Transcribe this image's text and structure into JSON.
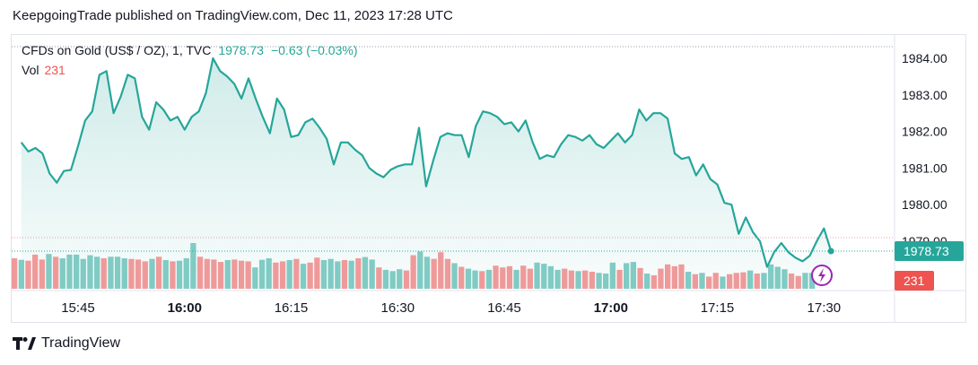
{
  "header": {
    "text": "KeepgoingTrade published on TradingView.com, Dec 11, 2023 17:28 UTC"
  },
  "legend": {
    "symbol": "CFDs on Gold (US$ / OZ), 1, TVC",
    "last": "1978.73",
    "change": "−0.63 (−0.03%)",
    "vol_label": "Vol",
    "vol_value": "231"
  },
  "badges": {
    "price": "1978.73",
    "volume": "231"
  },
  "footer": {
    "brand": "TradingView"
  },
  "colors": {
    "line": "#26a69a",
    "up_volume": "#80cbc4",
    "down_volume": "#ef9a9a",
    "price_badge": "#26a69a",
    "volume_badge": "#ef5350",
    "lightning": "#9c27b0"
  },
  "chart_data": {
    "type": "area",
    "symbol": "CFDs on Gold (US$ / OZ)",
    "interval": "1",
    "x_ticks": [
      "15:45",
      "16:00",
      "16:15",
      "16:30",
      "16:45",
      "17:00",
      "17:15",
      "17:30"
    ],
    "x_ticks_bold": [
      "16:00",
      "17:00"
    ],
    "y_ticks": [
      "1979.00",
      "1980.00",
      "1981.00",
      "1982.00",
      "1983.00",
      "1984.00"
    ],
    "ylim": [
      1978.2,
      1984.4
    ],
    "grid": false,
    "price_series": [
      {
        "t": "15:37",
        "v": 1981.7
      },
      {
        "t": "15:38",
        "v": 1981.45
      },
      {
        "t": "15:39",
        "v": 1981.55
      },
      {
        "t": "15:40",
        "v": 1981.4
      },
      {
        "t": "15:41",
        "v": 1980.85
      },
      {
        "t": "15:42",
        "v": 1980.6
      },
      {
        "t": "15:43",
        "v": 1980.92
      },
      {
        "t": "15:44",
        "v": 1980.95
      },
      {
        "t": "15:45",
        "v": 1981.6
      },
      {
        "t": "15:46",
        "v": 1982.3
      },
      {
        "t": "15:47",
        "v": 1982.55
      },
      {
        "t": "15:48",
        "v": 1983.55
      },
      {
        "t": "15:49",
        "v": 1983.65
      },
      {
        "t": "15:50",
        "v": 1982.5
      },
      {
        "t": "15:51",
        "v": 1982.95
      },
      {
        "t": "15:52",
        "v": 1983.55
      },
      {
        "t": "15:53",
        "v": 1983.45
      },
      {
        "t": "15:54",
        "v": 1982.4
      },
      {
        "t": "15:55",
        "v": 1982.05
      },
      {
        "t": "15:56",
        "v": 1982.8
      },
      {
        "t": "15:57",
        "v": 1982.6
      },
      {
        "t": "15:58",
        "v": 1982.3
      },
      {
        "t": "15:59",
        "v": 1982.4
      },
      {
        "t": "16:00",
        "v": 1982.05
      },
      {
        "t": "16:01",
        "v": 1982.4
      },
      {
        "t": "16:02",
        "v": 1982.55
      },
      {
        "t": "16:03",
        "v": 1983.05
      },
      {
        "t": "16:04",
        "v": 1984.0
      },
      {
        "t": "16:05",
        "v": 1983.65
      },
      {
        "t": "16:06",
        "v": 1983.5
      },
      {
        "t": "16:07",
        "v": 1983.3
      },
      {
        "t": "16:08",
        "v": 1982.9
      },
      {
        "t": "16:09",
        "v": 1983.45
      },
      {
        "t": "16:10",
        "v": 1982.9
      },
      {
        "t": "16:11",
        "v": 1982.4
      },
      {
        "t": "16:12",
        "v": 1981.95
      },
      {
        "t": "16:13",
        "v": 1982.9
      },
      {
        "t": "16:14",
        "v": 1982.6
      },
      {
        "t": "16:15",
        "v": 1981.85
      },
      {
        "t": "16:16",
        "v": 1981.9
      },
      {
        "t": "16:17",
        "v": 1982.25
      },
      {
        "t": "16:18",
        "v": 1982.35
      },
      {
        "t": "16:19",
        "v": 1982.1
      },
      {
        "t": "16:20",
        "v": 1981.8
      },
      {
        "t": "16:21",
        "v": 1981.1
      },
      {
        "t": "16:22",
        "v": 1981.7
      },
      {
        "t": "16:23",
        "v": 1981.7
      },
      {
        "t": "16:24",
        "v": 1981.5
      },
      {
        "t": "16:25",
        "v": 1981.35
      },
      {
        "t": "16:26",
        "v": 1981.0
      },
      {
        "t": "16:27",
        "v": 1980.85
      },
      {
        "t": "16:28",
        "v": 1980.75
      },
      {
        "t": "16:29",
        "v": 1980.95
      },
      {
        "t": "16:30",
        "v": 1981.05
      },
      {
        "t": "16:31",
        "v": 1981.1
      },
      {
        "t": "16:32",
        "v": 1981.1
      },
      {
        "t": "16:33",
        "v": 1982.1
      },
      {
        "t": "16:34",
        "v": 1980.5
      },
      {
        "t": "16:35",
        "v": 1981.2
      },
      {
        "t": "16:36",
        "v": 1981.85
      },
      {
        "t": "16:37",
        "v": 1981.95
      },
      {
        "t": "16:38",
        "v": 1981.9
      },
      {
        "t": "16:39",
        "v": 1981.9
      },
      {
        "t": "16:40",
        "v": 1981.3
      },
      {
        "t": "16:41",
        "v": 1982.15
      },
      {
        "t": "16:42",
        "v": 1982.55
      },
      {
        "t": "16:43",
        "v": 1982.5
      },
      {
        "t": "16:44",
        "v": 1982.4
      },
      {
        "t": "16:45",
        "v": 1982.2
      },
      {
        "t": "16:46",
        "v": 1982.25
      },
      {
        "t": "16:47",
        "v": 1982.0
      },
      {
        "t": "16:48",
        "v": 1982.3
      },
      {
        "t": "16:49",
        "v": 1981.7
      },
      {
        "t": "16:50",
        "v": 1981.25
      },
      {
        "t": "16:51",
        "v": 1981.35
      },
      {
        "t": "16:52",
        "v": 1981.3
      },
      {
        "t": "16:53",
        "v": 1981.65
      },
      {
        "t": "16:54",
        "v": 1981.9
      },
      {
        "t": "16:55",
        "v": 1981.85
      },
      {
        "t": "16:56",
        "v": 1981.75
      },
      {
        "t": "16:57",
        "v": 1981.9
      },
      {
        "t": "16:58",
        "v": 1981.65
      },
      {
        "t": "16:59",
        "v": 1981.55
      },
      {
        "t": "17:00",
        "v": 1981.75
      },
      {
        "t": "17:01",
        "v": 1981.95
      },
      {
        "t": "17:02",
        "v": 1981.7
      },
      {
        "t": "17:03",
        "v": 1981.9
      },
      {
        "t": "17:04",
        "v": 1982.6
      },
      {
        "t": "17:05",
        "v": 1982.3
      },
      {
        "t": "17:06",
        "v": 1982.5
      },
      {
        "t": "17:07",
        "v": 1982.5
      },
      {
        "t": "17:08",
        "v": 1982.35
      },
      {
        "t": "17:09",
        "v": 1981.4
      },
      {
        "t": "17:10",
        "v": 1981.25
      },
      {
        "t": "17:11",
        "v": 1981.3
      },
      {
        "t": "17:12",
        "v": 1980.8
      },
      {
        "t": "17:13",
        "v": 1981.1
      },
      {
        "t": "17:14",
        "v": 1980.7
      },
      {
        "t": "17:15",
        "v": 1980.55
      },
      {
        "t": "17:16",
        "v": 1980.05
      },
      {
        "t": "17:17",
        "v": 1980.0
      },
      {
        "t": "17:18",
        "v": 1979.2
      },
      {
        "t": "17:19",
        "v": 1979.65
      },
      {
        "t": "17:20",
        "v": 1979.25
      },
      {
        "t": "17:21",
        "v": 1979.0
      },
      {
        "t": "17:22",
        "v": 1978.3
      },
      {
        "t": "17:23",
        "v": 1978.7
      },
      {
        "t": "17:24",
        "v": 1978.95
      },
      {
        "t": "17:25",
        "v": 1978.7
      },
      {
        "t": "17:26",
        "v": 1978.55
      },
      {
        "t": "17:27",
        "v": 1978.45
      },
      {
        "t": "17:28",
        "v": 1978.6
      },
      {
        "t": "17:29",
        "v": 1979.0
      },
      {
        "t": "17:30",
        "v": 1979.35
      },
      {
        "t": "17:31",
        "v": 1978.73
      }
    ],
    "volume_series": [
      {
        "v": 1.0,
        "d": "down"
      },
      {
        "v": 0.95,
        "d": "up"
      },
      {
        "v": 0.92,
        "d": "down"
      },
      {
        "v": 1.12,
        "d": "down"
      },
      {
        "v": 0.96,
        "d": "down"
      },
      {
        "v": 1.14,
        "d": "up"
      },
      {
        "v": 1.05,
        "d": "down"
      },
      {
        "v": 1.0,
        "d": "up"
      },
      {
        "v": 1.12,
        "d": "up"
      },
      {
        "v": 1.12,
        "d": "up"
      },
      {
        "v": 0.98,
        "d": "up"
      },
      {
        "v": 1.1,
        "d": "up"
      },
      {
        "v": 1.05,
        "d": "up"
      },
      {
        "v": 1.0,
        "d": "down"
      },
      {
        "v": 1.05,
        "d": "up"
      },
      {
        "v": 1.05,
        "d": "up"
      },
      {
        "v": 1.0,
        "d": "up"
      },
      {
        "v": 0.98,
        "d": "down"
      },
      {
        "v": 0.96,
        "d": "down"
      },
      {
        "v": 0.9,
        "d": "down"
      },
      {
        "v": 0.98,
        "d": "up"
      },
      {
        "v": 1.05,
        "d": "down"
      },
      {
        "v": 0.94,
        "d": "up"
      },
      {
        "v": 0.9,
        "d": "down"
      },
      {
        "v": 0.92,
        "d": "up"
      },
      {
        "v": 1.0,
        "d": "up"
      },
      {
        "v": 1.5,
        "d": "up"
      },
      {
        "v": 1.05,
        "d": "down"
      },
      {
        "v": 0.98,
        "d": "down"
      },
      {
        "v": 0.96,
        "d": "down"
      },
      {
        "v": 0.88,
        "d": "down"
      },
      {
        "v": 0.94,
        "d": "up"
      },
      {
        "v": 0.96,
        "d": "down"
      },
      {
        "v": 0.92,
        "d": "down"
      },
      {
        "v": 0.9,
        "d": "down"
      },
      {
        "v": 0.7,
        "d": "up"
      },
      {
        "v": 0.95,
        "d": "up"
      },
      {
        "v": 1.0,
        "d": "up"
      },
      {
        "v": 0.86,
        "d": "down"
      },
      {
        "v": 0.9,
        "d": "down"
      },
      {
        "v": 0.94,
        "d": "up"
      },
      {
        "v": 0.98,
        "d": "down"
      },
      {
        "v": 0.82,
        "d": "up"
      },
      {
        "v": 0.86,
        "d": "down"
      },
      {
        "v": 1.02,
        "d": "down"
      },
      {
        "v": 0.94,
        "d": "up"
      },
      {
        "v": 0.98,
        "d": "up"
      },
      {
        "v": 0.9,
        "d": "up"
      },
      {
        "v": 0.94,
        "d": "down"
      },
      {
        "v": 0.92,
        "d": "up"
      },
      {
        "v": 1.0,
        "d": "down"
      },
      {
        "v": 1.04,
        "d": "up"
      },
      {
        "v": 0.96,
        "d": "up"
      },
      {
        "v": 0.7,
        "d": "down"
      },
      {
        "v": 0.62,
        "d": "up"
      },
      {
        "v": 0.58,
        "d": "up"
      },
      {
        "v": 0.64,
        "d": "up"
      },
      {
        "v": 0.6,
        "d": "down"
      },
      {
        "v": 1.1,
        "d": "down"
      },
      {
        "v": 1.22,
        "d": "up"
      },
      {
        "v": 1.05,
        "d": "up"
      },
      {
        "v": 0.98,
        "d": "down"
      },
      {
        "v": 1.2,
        "d": "down"
      },
      {
        "v": 0.98,
        "d": "down"
      },
      {
        "v": 0.84,
        "d": "up"
      },
      {
        "v": 0.72,
        "d": "down"
      },
      {
        "v": 0.66,
        "d": "up"
      },
      {
        "v": 0.6,
        "d": "up"
      },
      {
        "v": 0.58,
        "d": "down"
      },
      {
        "v": 0.62,
        "d": "up"
      },
      {
        "v": 0.76,
        "d": "down"
      },
      {
        "v": 0.7,
        "d": "down"
      },
      {
        "v": 0.74,
        "d": "down"
      },
      {
        "v": 0.62,
        "d": "up"
      },
      {
        "v": 0.76,
        "d": "down"
      },
      {
        "v": 0.66,
        "d": "down"
      },
      {
        "v": 0.86,
        "d": "up"
      },
      {
        "v": 0.82,
        "d": "up"
      },
      {
        "v": 0.74,
        "d": "up"
      },
      {
        "v": 0.62,
        "d": "up"
      },
      {
        "v": 0.66,
        "d": "down"
      },
      {
        "v": 0.6,
        "d": "down"
      },
      {
        "v": 0.58,
        "d": "up"
      },
      {
        "v": 0.6,
        "d": "down"
      },
      {
        "v": 0.56,
        "d": "down"
      },
      {
        "v": 0.52,
        "d": "up"
      },
      {
        "v": 0.5,
        "d": "up"
      },
      {
        "v": 0.86,
        "d": "up"
      },
      {
        "v": 0.62,
        "d": "down"
      },
      {
        "v": 0.84,
        "d": "up"
      },
      {
        "v": 0.88,
        "d": "up"
      },
      {
        "v": 0.68,
        "d": "down"
      },
      {
        "v": 0.5,
        "d": "up"
      },
      {
        "v": 0.44,
        "d": "down"
      },
      {
        "v": 0.66,
        "d": "down"
      },
      {
        "v": 0.8,
        "d": "down"
      },
      {
        "v": 0.74,
        "d": "down"
      },
      {
        "v": 0.8,
        "d": "down"
      },
      {
        "v": 0.56,
        "d": "up"
      },
      {
        "v": 0.48,
        "d": "down"
      },
      {
        "v": 0.52,
        "d": "up"
      },
      {
        "v": 0.4,
        "d": "down"
      },
      {
        "v": 0.52,
        "d": "down"
      },
      {
        "v": 0.4,
        "d": "up"
      },
      {
        "v": 0.48,
        "d": "down"
      },
      {
        "v": 0.52,
        "d": "down"
      },
      {
        "v": 0.54,
        "d": "down"
      },
      {
        "v": 0.6,
        "d": "up"
      },
      {
        "v": 0.5,
        "d": "down"
      },
      {
        "v": 0.52,
        "d": "up"
      },
      {
        "v": 0.8,
        "d": "up"
      },
      {
        "v": 0.72,
        "d": "up"
      },
      {
        "v": 0.64,
        "d": "up"
      },
      {
        "v": 0.5,
        "d": "down"
      },
      {
        "v": 0.42,
        "d": "down"
      },
      {
        "v": 0.52,
        "d": "up"
      },
      {
        "v": 0.52,
        "d": "up"
      }
    ]
  }
}
